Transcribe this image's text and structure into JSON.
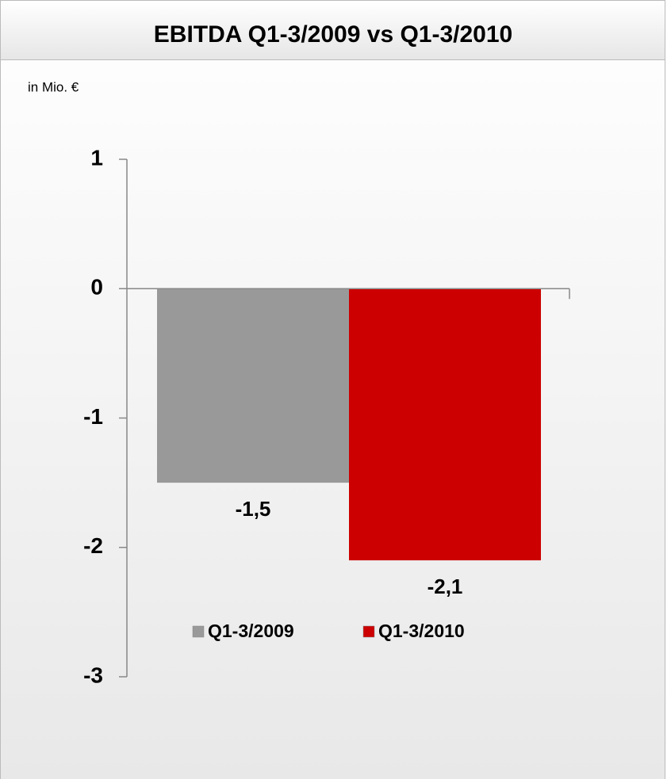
{
  "chart_data": {
    "type": "bar",
    "title": "EBITDA Q1-3/2009 vs Q1-3/2010",
    "subtitle": "in Mio. €",
    "series": [
      {
        "name": "Q1-3/2009",
        "color": "#999999",
        "values": [
          -1.5
        ],
        "value_labels": [
          "-1,5"
        ]
      },
      {
        "name": "Q1-3/2010",
        "color": "#cc0000",
        "values": [
          -2.1
        ],
        "value_labels": [
          "-2,1"
        ]
      }
    ],
    "ylim": [
      -3,
      1
    ],
    "yticks": [
      -3,
      -2,
      -1,
      0,
      1
    ],
    "legend": "bottom"
  }
}
